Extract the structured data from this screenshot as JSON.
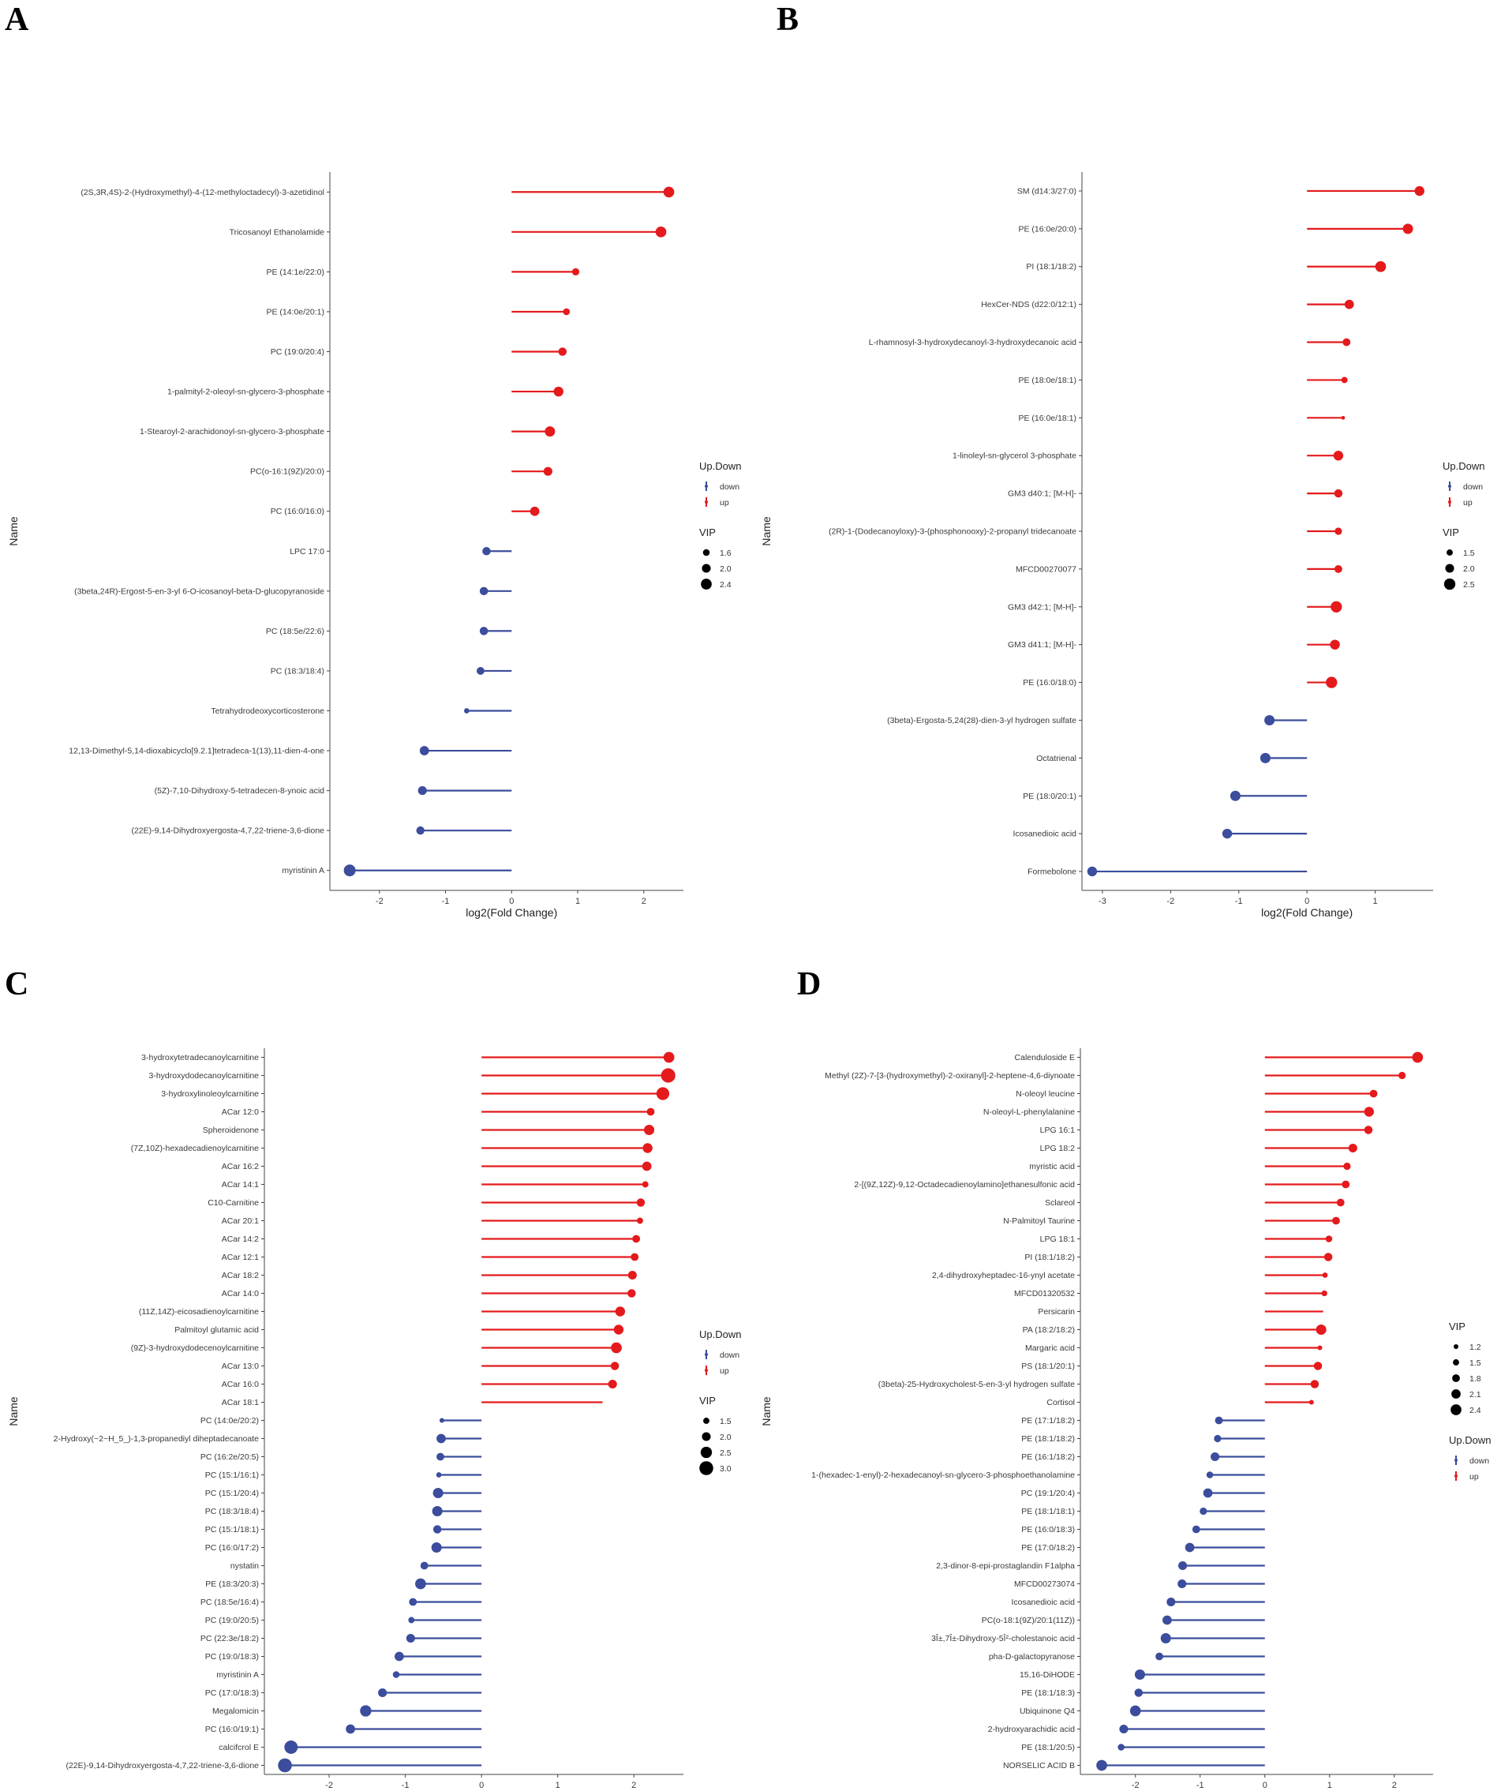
{
  "colors": {
    "up": "#e41a1c",
    "down": "#3b4d9c",
    "axis": "#444444"
  },
  "chart_data": [
    {
      "panel": "A",
      "type": "lollipop",
      "xlabel": "log2(Fold Change)",
      "ylabel": "Name",
      "xlim": [
        -2.75,
        2.6
      ],
      "xticks": [
        -2,
        -1,
        0,
        1,
        2
      ],
      "legend": {
        "updown_title": "Up.Down",
        "updown": [
          "down",
          "up"
        ],
        "vip_title": "VIP",
        "vip": [
          "1.6",
          "2.0",
          "2.4"
        ],
        "order": "updown-first"
      },
      "items": [
        {
          "name": "(2S,3R,4S)-2-(Hydroxymethyl)-4-(12-methyloctadecyl)-3-azetidinol",
          "value": 2.38,
          "vip": 2.4,
          "dir": "up"
        },
        {
          "name": "Tricosanoyl Ethanolamide",
          "value": 2.26,
          "vip": 2.4,
          "dir": "up"
        },
        {
          "name": "PE (14:1e/22:0)",
          "value": 0.97,
          "vip": 1.7,
          "dir": "up"
        },
        {
          "name": "PE (14:0e/20:1)",
          "value": 0.83,
          "vip": 1.6,
          "dir": "up"
        },
        {
          "name": "PC (19:0/20:4)",
          "value": 0.77,
          "vip": 1.9,
          "dir": "up"
        },
        {
          "name": "1-palmityl-2-oleoyl-sn-glycero-3-phosphate",
          "value": 0.71,
          "vip": 2.2,
          "dir": "up"
        },
        {
          "name": "1-Stearoyl-2-arachidonoyl-sn-glycero-3-phosphate",
          "value": 0.58,
          "vip": 2.3,
          "dir": "up"
        },
        {
          "name": "PC(o-16:1(9Z)/20:0)",
          "value": 0.55,
          "vip": 2.0,
          "dir": "up"
        },
        {
          "name": "PC (16:0/16:0)",
          "value": 0.35,
          "vip": 2.1,
          "dir": "up"
        },
        {
          "name": "LPC 17:0",
          "value": -0.38,
          "vip": 1.9,
          "dir": "down"
        },
        {
          "name": "(3beta,24R)-Ergost-5-en-3-yl 6-O-icosanoyl-beta-D-glucopyranoside",
          "value": -0.42,
          "vip": 1.9,
          "dir": "down"
        },
        {
          "name": "PC (18:5e/22:6)",
          "value": -0.42,
          "vip": 1.9,
          "dir": "down"
        },
        {
          "name": "PC (18:3/18:4)",
          "value": -0.47,
          "vip": 1.8,
          "dir": "down"
        },
        {
          "name": "Tetrahydrodeoxycorticosterone",
          "value": -0.68,
          "vip": 1.3,
          "dir": "down"
        },
        {
          "name": "12,13-Dimethyl-5,14-dioxabicyclo[9.2.1]tetradeca-1(13),11-dien-4-one",
          "value": -1.32,
          "vip": 2.1,
          "dir": "down"
        },
        {
          "name": "(5Z)-7,10-Dihydroxy-5-tetradecen-8-ynoic acid",
          "value": -1.35,
          "vip": 2.0,
          "dir": "down"
        },
        {
          "name": "(22E)-9,14-Dihydroxyergosta-4,7,22-triene-3,6-dione",
          "value": -1.38,
          "vip": 1.9,
          "dir": "down"
        },
        {
          "name": "myristinin A",
          "value": -2.45,
          "vip": 2.6,
          "dir": "down"
        }
      ]
    },
    {
      "panel": "B",
      "type": "lollipop",
      "xlabel": "log2(Fold Change)",
      "ylabel": "Name",
      "xlim": [
        -3.3,
        1.85
      ],
      "xticks": [
        -3,
        -2,
        -1,
        0,
        1
      ],
      "legend": {
        "updown_title": "Up.Down",
        "updown": [
          "down",
          "up"
        ],
        "vip_title": "VIP",
        "vip": [
          "1.5",
          "2.0",
          "2.5"
        ],
        "order": "updown-first"
      },
      "items": [
        {
          "name": "SM (d14:3/27:0)",
          "value": 1.65,
          "vip": 2.2,
          "dir": "up"
        },
        {
          "name": "PE (16:0e/20:0)",
          "value": 1.48,
          "vip": 2.3,
          "dir": "up"
        },
        {
          "name": "PI (18:1/18:2)",
          "value": 1.08,
          "vip": 2.4,
          "dir": "up"
        },
        {
          "name": "HexCer-NDS (d22:0/12:1)",
          "value": 0.62,
          "vip": 2.1,
          "dir": "up"
        },
        {
          "name": "L-rhamnosyl-3-hydroxydecanoyl-3-hydroxydecanoic acid",
          "value": 0.58,
          "vip": 1.8,
          "dir": "up"
        },
        {
          "name": "PE (18:0e/18:1)",
          "value": 0.55,
          "vip": 1.5,
          "dir": "up"
        },
        {
          "name": "PE (16:0e/18:1)",
          "value": 0.53,
          "vip": 1.0,
          "dir": "up"
        },
        {
          "name": "1-linoleyl-sn-glycerol 3-phosphate",
          "value": 0.46,
          "vip": 2.2,
          "dir": "up"
        },
        {
          "name": "GM3 d40:1; [M-H]-",
          "value": 0.46,
          "vip": 1.9,
          "dir": "up"
        },
        {
          "name": "(2R)-1-(Dodecanoyloxy)-3-(phosphonooxy)-2-propanyl tridecanoate",
          "value": 0.46,
          "vip": 1.7,
          "dir": "up"
        },
        {
          "name": "MFCD00270077",
          "value": 0.46,
          "vip": 1.8,
          "dir": "up"
        },
        {
          "name": "GM3 d42:1; [M-H]-",
          "value": 0.43,
          "vip": 2.5,
          "dir": "up"
        },
        {
          "name": "GM3 d41:1; [M-H]-",
          "value": 0.41,
          "vip": 2.2,
          "dir": "up"
        },
        {
          "name": "PE (16:0/18:0)",
          "value": 0.36,
          "vip": 2.5,
          "dir": "up"
        },
        {
          "name": "(3beta)-Ergosta-5,24(28)-dien-3-yl hydrogen sulfate",
          "value": -0.55,
          "vip": 2.3,
          "dir": "down"
        },
        {
          "name": "Octatrienal",
          "value": -0.61,
          "vip": 2.3,
          "dir": "down"
        },
        {
          "name": "PE (18:0/20:1)",
          "value": -1.05,
          "vip": 2.3,
          "dir": "down"
        },
        {
          "name": "Icosanedioic acid",
          "value": -1.17,
          "vip": 2.2,
          "dir": "down"
        },
        {
          "name": "Formebolone",
          "value": -3.15,
          "vip": 2.2,
          "dir": "down"
        }
      ]
    },
    {
      "panel": "C",
      "type": "lollipop",
      "xlabel": "log2(Fold Change)",
      "ylabel": "Name",
      "xlim": [
        -2.85,
        2.65
      ],
      "xticks": [
        -2,
        -1,
        0,
        1,
        2
      ],
      "legend": {
        "updown_title": "Up.Down",
        "updown": [
          "down",
          "up"
        ],
        "vip_title": "VIP",
        "vip": [
          "1.5",
          "2.0",
          "2.5",
          "3.0"
        ],
        "order": "updown-first"
      },
      "items": [
        {
          "name": "3-hydroxytetradecanoylcarnitine",
          "value": 2.46,
          "vip": 2.4,
          "dir": "up"
        },
        {
          "name": "3-hydroxydodecanoylcarnitine",
          "value": 2.45,
          "vip": 3.1,
          "dir": "up"
        },
        {
          "name": "3-hydroxylinoleoylcarnitine",
          "value": 2.38,
          "vip": 2.8,
          "dir": "up"
        },
        {
          "name": "ACar 12:0",
          "value": 2.22,
          "vip": 1.8,
          "dir": "up"
        },
        {
          "name": "Spheroidenone",
          "value": 2.2,
          "vip": 2.3,
          "dir": "up"
        },
        {
          "name": "(7Z,10Z)-hexadecadienoylcarnitine",
          "value": 2.18,
          "vip": 2.2,
          "dir": "up"
        },
        {
          "name": "ACar 16:2",
          "value": 2.17,
          "vip": 2.1,
          "dir": "up"
        },
        {
          "name": "ACar 14:1",
          "value": 2.15,
          "vip": 1.5,
          "dir": "up"
        },
        {
          "name": "C10-Carnitine",
          "value": 2.09,
          "vip": 1.9,
          "dir": "up"
        },
        {
          "name": "ACar 20:1",
          "value": 2.08,
          "vip": 1.5,
          "dir": "up"
        },
        {
          "name": "ACar 14:2",
          "value": 2.03,
          "vip": 1.8,
          "dir": "up"
        },
        {
          "name": "ACar 12:1",
          "value": 2.01,
          "vip": 1.8,
          "dir": "up"
        },
        {
          "name": "ACar 18:2",
          "value": 1.98,
          "vip": 2.0,
          "dir": "up"
        },
        {
          "name": "ACar 14:0",
          "value": 1.97,
          "vip": 1.9,
          "dir": "up"
        },
        {
          "name": "(11Z,14Z)-eicosadienoylcarnitine",
          "value": 1.82,
          "vip": 2.2,
          "dir": "up"
        },
        {
          "name": "Palmitoyl glutamic acid",
          "value": 1.8,
          "vip": 2.2,
          "dir": "up"
        },
        {
          "name": "(9Z)-3-hydroxydodecenoylcarnitine",
          "value": 1.77,
          "vip": 2.4,
          "dir": "up"
        },
        {
          "name": "ACar 13:0",
          "value": 1.75,
          "vip": 1.9,
          "dir": "up"
        },
        {
          "name": "ACar 16:0",
          "value": 1.72,
          "vip": 2.0,
          "dir": "up"
        },
        {
          "name": "ACar 18:1",
          "value": 1.58,
          "vip": 0.6,
          "dir": "up"
        },
        {
          "name": "PC (14:0e/20:2)",
          "value": -0.52,
          "vip": 1.2,
          "dir": "down"
        },
        {
          "name": "2-Hydroxy(~2~H_5_)-1,3-propanediyl diheptadecanoate",
          "value": -0.53,
          "vip": 2.1,
          "dir": "down"
        },
        {
          "name": "PC (16:2e/20:5)",
          "value": -0.54,
          "vip": 1.8,
          "dir": "down"
        },
        {
          "name": "PC (15:1/16:1)",
          "value": -0.56,
          "vip": 1.3,
          "dir": "down"
        },
        {
          "name": "PC (15:1/20:4)",
          "value": -0.57,
          "vip": 2.3,
          "dir": "down"
        },
        {
          "name": "PC (18:3/18:4)",
          "value": -0.58,
          "vip": 2.3,
          "dir": "down"
        },
        {
          "name": "PC (15:1/18:1)",
          "value": -0.58,
          "vip": 1.9,
          "dir": "down"
        },
        {
          "name": "PC (16:0/17:2)",
          "value": -0.59,
          "vip": 2.3,
          "dir": "down"
        },
        {
          "name": "nystatin",
          "value": -0.75,
          "vip": 1.8,
          "dir": "down"
        },
        {
          "name": "PE (18:3/20:3)",
          "value": -0.8,
          "vip": 2.4,
          "dir": "down"
        },
        {
          "name": "PC (18:5e/16:4)",
          "value": -0.9,
          "vip": 1.8,
          "dir": "down"
        },
        {
          "name": "PC (19:0/20:5)",
          "value": -0.92,
          "vip": 1.5,
          "dir": "down"
        },
        {
          "name": "PC (22:3e/18:2)",
          "value": -0.93,
          "vip": 2.0,
          "dir": "down"
        },
        {
          "name": "PC (19:0/18:3)",
          "value": -1.08,
          "vip": 2.1,
          "dir": "down"
        },
        {
          "name": "myristinin A",
          "value": -1.12,
          "vip": 1.6,
          "dir": "down"
        },
        {
          "name": "PC (17:0/18:3)",
          "value": -1.3,
          "vip": 2.0,
          "dir": "down"
        },
        {
          "name": "Megalomicin",
          "value": -1.52,
          "vip": 2.5,
          "dir": "down"
        },
        {
          "name": "PC (16:0/19:1)",
          "value": -1.72,
          "vip": 2.1,
          "dir": "down"
        },
        {
          "name": "calcifcrol E",
          "value": -2.5,
          "vip": 2.9,
          "dir": "down"
        },
        {
          "name": "(22E)-9,14-Dihydroxyergosta-4,7,22-triene-3,6-dione",
          "value": -2.58,
          "vip": 3.0,
          "dir": "down"
        }
      ]
    },
    {
      "panel": "D",
      "type": "lollipop",
      "xlabel": "log2(Fold Change)",
      "ylabel": "Name",
      "xlim": [
        -2.85,
        2.6
      ],
      "xticks": [
        -2,
        -1,
        0,
        1,
        2
      ],
      "legend": {
        "updown_title": "Up.Down",
        "updown": [
          "down",
          "up"
        ],
        "vip_title": "VIP",
        "vip": [
          "1.2",
          "1.5",
          "1.8",
          "2.1",
          "2.4"
        ],
        "order": "vip-first"
      },
      "items": [
        {
          "name": "Calenduloside E",
          "value": 2.36,
          "vip": 2.4,
          "dir": "up"
        },
        {
          "name": "Methyl (2Z)-7-[3-(hydroxymethyl)-2-oxiranyl]-2-heptene-4,6-diynoate",
          "value": 2.12,
          "vip": 1.7,
          "dir": "up"
        },
        {
          "name": "N-oleoyl leucine",
          "value": 1.68,
          "vip": 1.8,
          "dir": "up"
        },
        {
          "name": "N-oleoyl-L-phenylalanine",
          "value": 1.61,
          "vip": 2.2,
          "dir": "up"
        },
        {
          "name": "LPG 16:1",
          "value": 1.6,
          "vip": 1.9,
          "dir": "up"
        },
        {
          "name": "LPG 18:2",
          "value": 1.36,
          "vip": 2.0,
          "dir": "up"
        },
        {
          "name": "myristic acid",
          "value": 1.27,
          "vip": 1.7,
          "dir": "up"
        },
        {
          "name": "2-[(9Z,12Z)-9,12-Octadecadienoylamino]ethanesulfonic acid",
          "value": 1.25,
          "vip": 1.8,
          "dir": "up"
        },
        {
          "name": "Sclareol",
          "value": 1.17,
          "vip": 1.8,
          "dir": "up"
        },
        {
          "name": "N-Palmitoyl Taurine",
          "value": 1.1,
          "vip": 1.8,
          "dir": "up"
        },
        {
          "name": "LPG 18:1",
          "value": 0.99,
          "vip": 1.6,
          "dir": "up"
        },
        {
          "name": "PI (18:1/18:2)",
          "value": 0.98,
          "vip": 1.9,
          "dir": "up"
        },
        {
          "name": "2,4-dihydroxyheptadec-16-ynyl acetate",
          "value": 0.93,
          "vip": 1.3,
          "dir": "up"
        },
        {
          "name": "MFCD01320532",
          "value": 0.92,
          "vip": 1.4,
          "dir": "up"
        },
        {
          "name": "Persicarin",
          "value": 0.9,
          "vip": 0.3,
          "dir": "up"
        },
        {
          "name": "PA (18:2/18:2)",
          "value": 0.87,
          "vip": 2.3,
          "dir": "up"
        },
        {
          "name": "Margaric acid",
          "value": 0.85,
          "vip": 1.2,
          "dir": "up"
        },
        {
          "name": "PS (18:1/20:1)",
          "value": 0.82,
          "vip": 1.9,
          "dir": "up"
        },
        {
          "name": "(3beta)-25-Hydroxycholest-5-en-3-yl hydrogen sulfate",
          "value": 0.77,
          "vip": 1.9,
          "dir": "up"
        },
        {
          "name": "Cortisol",
          "value": 0.72,
          "vip": 1.2,
          "dir": "up"
        },
        {
          "name": "PE (17:1/18:2)",
          "value": -0.71,
          "vip": 1.8,
          "dir": "down"
        },
        {
          "name": "PE (18:1/18:2)",
          "value": -0.73,
          "vip": 1.7,
          "dir": "down"
        },
        {
          "name": "PE (16:1/18:2)",
          "value": -0.77,
          "vip": 2.0,
          "dir": "down"
        },
        {
          "name": "1-(hexadec-1-enyl)-2-hexadecanoyl-sn-glycero-3-phosphoethanolamine",
          "value": -0.85,
          "vip": 1.6,
          "dir": "down"
        },
        {
          "name": "PC (19:1/20:4)",
          "value": -0.88,
          "vip": 2.1,
          "dir": "down"
        },
        {
          "name": "PE (18:1/18:1)",
          "value": -0.95,
          "vip": 1.7,
          "dir": "down"
        },
        {
          "name": "PE (16:0/18:3)",
          "value": -1.06,
          "vip": 1.8,
          "dir": "down"
        },
        {
          "name": "PE (17:0/18:2)",
          "value": -1.16,
          "vip": 2.1,
          "dir": "down"
        },
        {
          "name": "2,3-dinor-8-epi-prostaglandin F1alpha",
          "value": -1.27,
          "vip": 2.0,
          "dir": "down"
        },
        {
          "name": "MFCD00273074",
          "value": -1.28,
          "vip": 2.0,
          "dir": "down"
        },
        {
          "name": "Icosanedioic acid",
          "value": -1.45,
          "vip": 2.0,
          "dir": "down"
        },
        {
          "name": "PC(o-18:1(9Z)/20:1(11Z))",
          "value": -1.51,
          "vip": 2.1,
          "dir": "down"
        },
        {
          "name": "3Î±,7Î±-Dihydroxy-5Î²-cholestanoic acid",
          "value": -1.53,
          "vip": 2.3,
          "dir": "down"
        },
        {
          "name": "pha-D-galactopyranose",
          "value": -1.63,
          "vip": 1.8,
          "dir": "down"
        },
        {
          "name": "15,16-DiHODE",
          "value": -1.93,
          "vip": 2.3,
          "dir": "down"
        },
        {
          "name": "PE (18:1/18:3)",
          "value": -1.95,
          "vip": 1.9,
          "dir": "down"
        },
        {
          "name": "Ubiquinone Q4",
          "value": -2.0,
          "vip": 2.4,
          "dir": "down"
        },
        {
          "name": "2-hydroxyarachidic acid",
          "value": -2.18,
          "vip": 2.0,
          "dir": "down"
        },
        {
          "name": "PE (18:1/20:5)",
          "value": -2.22,
          "vip": 1.6,
          "dir": "down"
        },
        {
          "name": "NORSELIC ACID B",
          "value": -2.52,
          "vip": 2.4,
          "dir": "down"
        }
      ]
    }
  ]
}
